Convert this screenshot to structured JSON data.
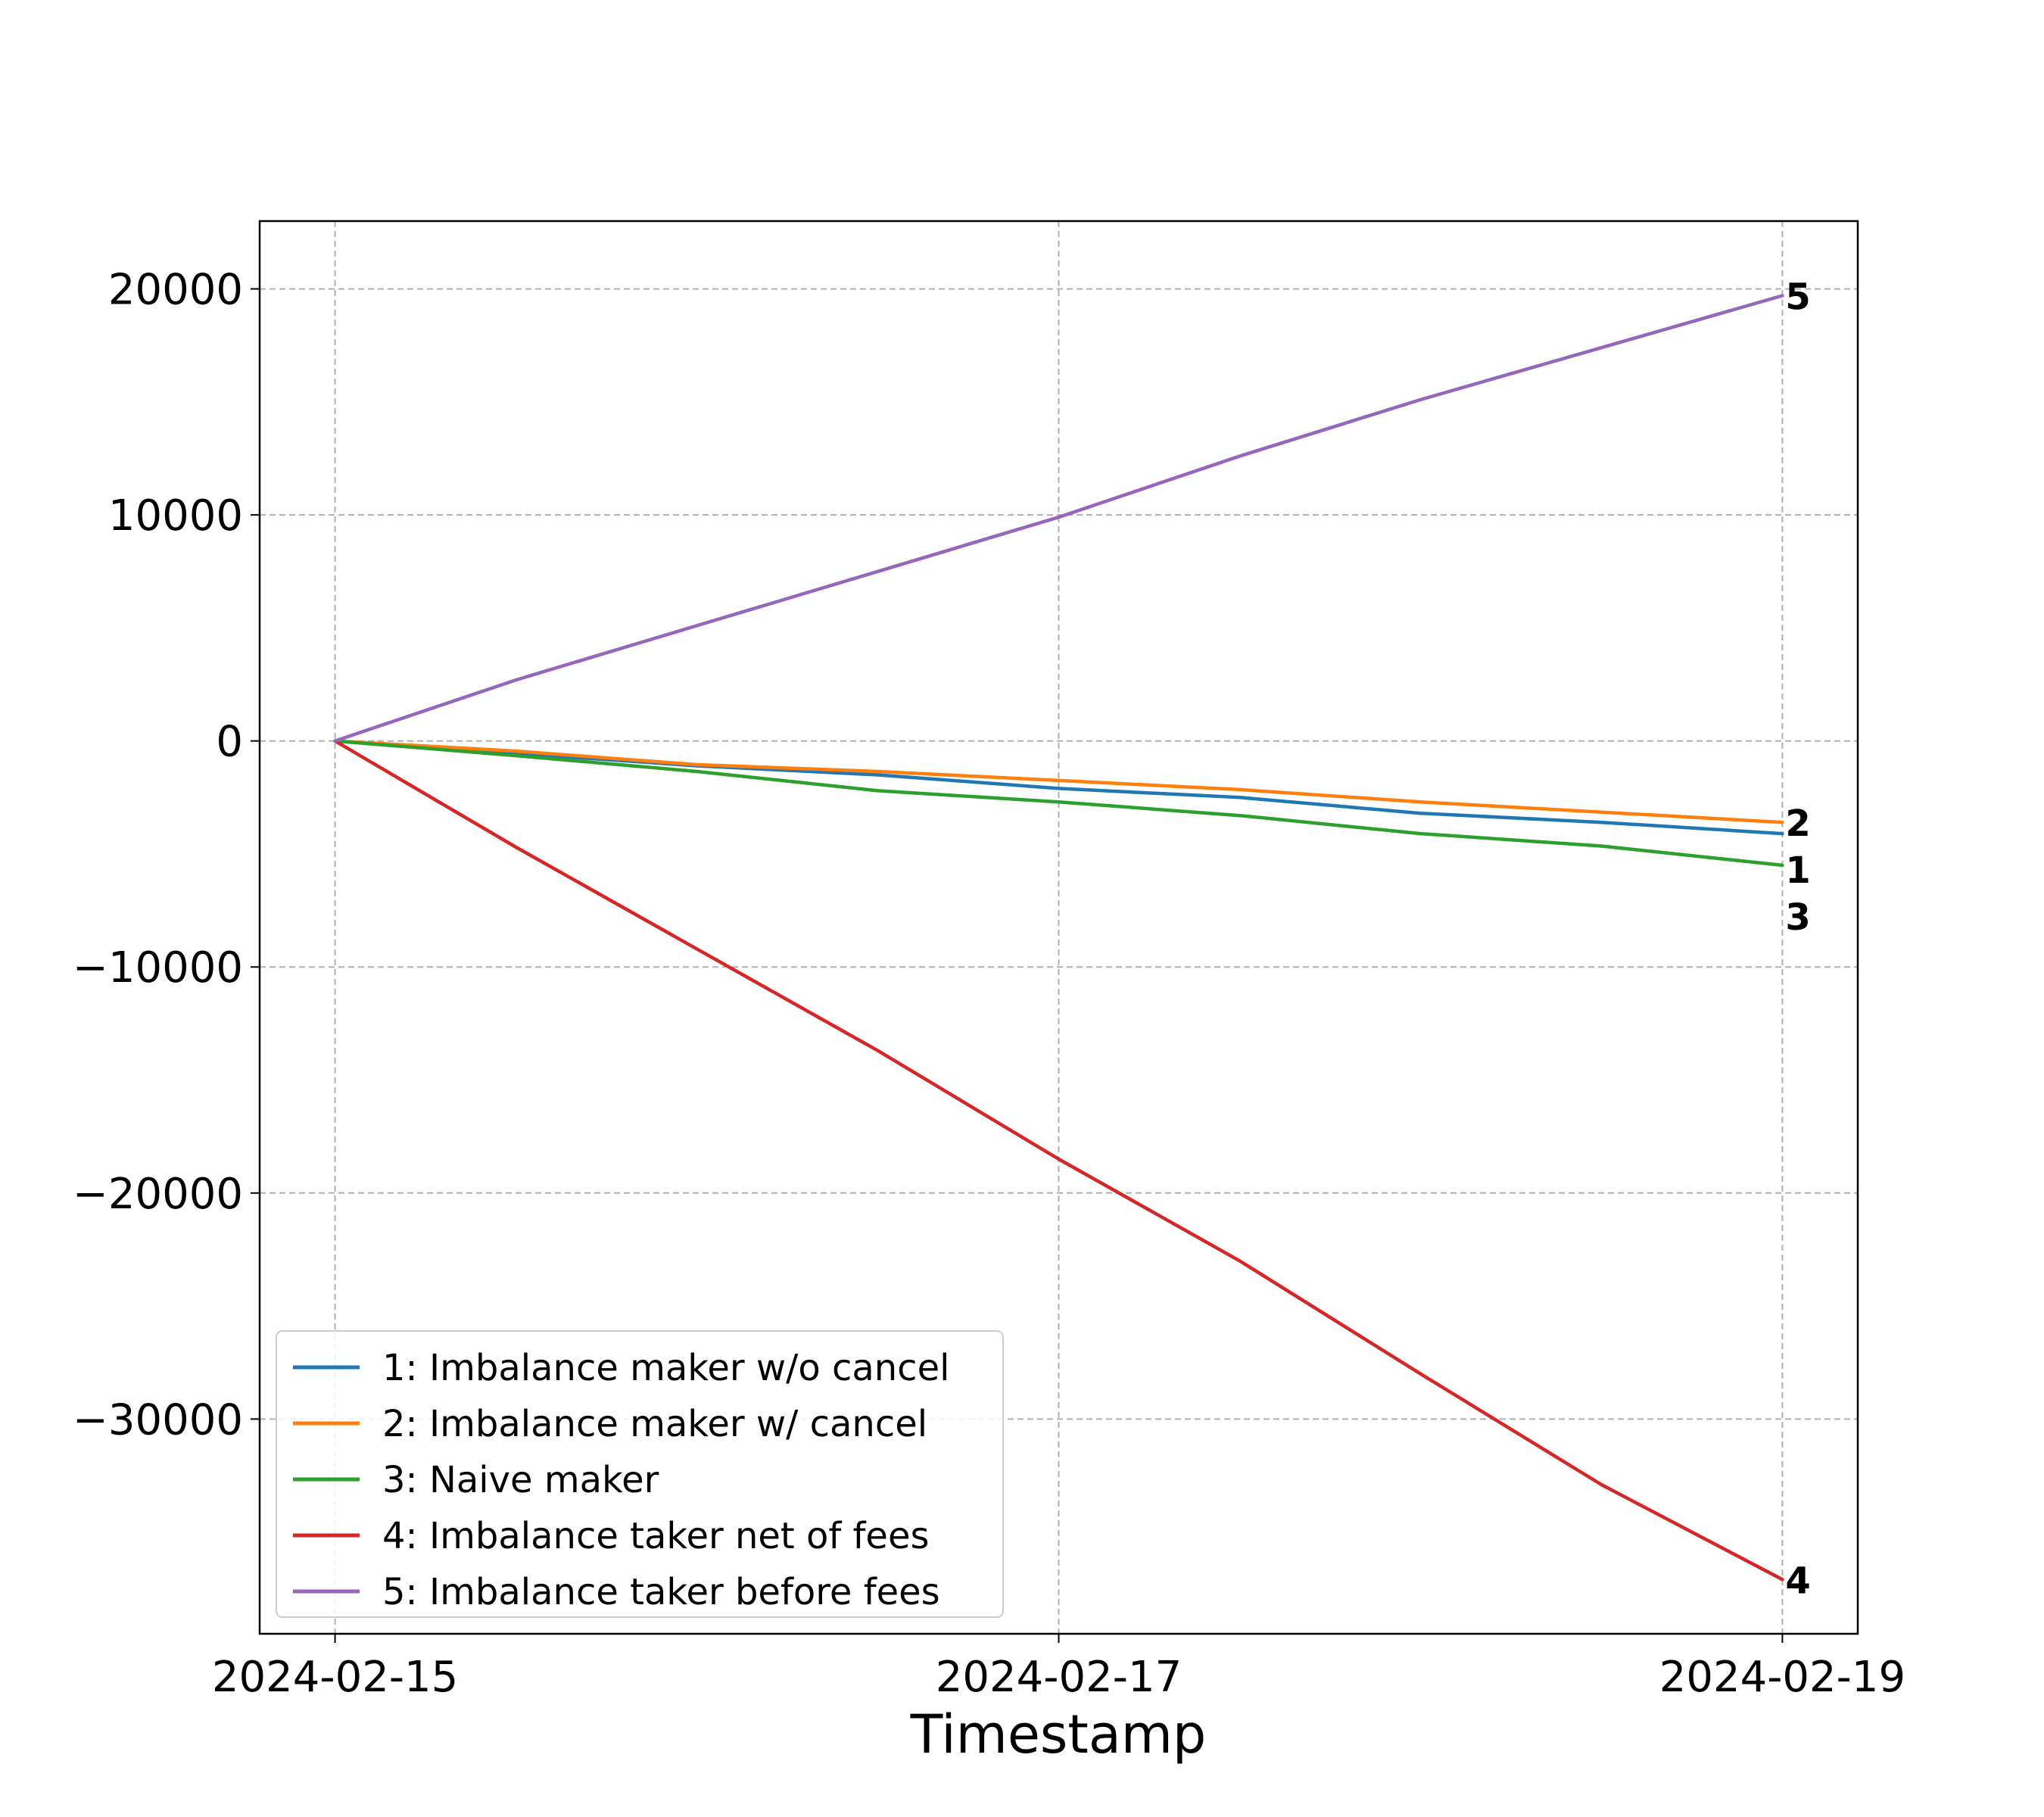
{
  "chart_data": {
    "type": "line",
    "title": "",
    "xlabel": "Timestamp",
    "ylabel": "",
    "x_ticks": [
      "2024-02-15",
      "2024-02-17",
      "2024-02-19"
    ],
    "y_ticks": [
      20000,
      10000,
      0,
      -10000,
      -20000,
      -30000
    ],
    "y_tick_labels": [
      "20000",
      "10000",
      "0",
      "−10000",
      "−20000",
      "−30000"
    ],
    "xlim": [
      "2024-02-14T19:00",
      "2024-02-19T05:00"
    ],
    "ylim": [
      -39500,
      23000
    ],
    "grid": true,
    "grid_style": "dashed",
    "legend_position": "lower-left",
    "series": [
      {
        "name": "1: Imbalance maker w/o cancel",
        "end_label": "1",
        "color": "#1f77b4",
        "points": [
          [
            "2024-02-15T00:00",
            0
          ],
          [
            "2024-02-15T12:00",
            -550
          ],
          [
            "2024-02-16T00:00",
            -1100
          ],
          [
            "2024-02-16T12:00",
            -1500
          ],
          [
            "2024-02-17T00:00",
            -2100
          ],
          [
            "2024-02-17T12:00",
            -2500
          ],
          [
            "2024-02-18T00:00",
            -3200
          ],
          [
            "2024-02-18T12:00",
            -3600
          ],
          [
            "2024-02-19T00:00",
            -4100
          ]
        ]
      },
      {
        "name": "2: Imbalance maker w/ cancel",
        "end_label": "2",
        "color": "#ff7f0e",
        "points": [
          [
            "2024-02-15T00:00",
            0
          ],
          [
            "2024-02-15T12:00",
            -450
          ],
          [
            "2024-02-16T00:00",
            -1050
          ],
          [
            "2024-02-16T12:00",
            -1350
          ],
          [
            "2024-02-17T00:00",
            -1750
          ],
          [
            "2024-02-17T12:00",
            -2150
          ],
          [
            "2024-02-18T00:00",
            -2700
          ],
          [
            "2024-02-18T12:00",
            -3150
          ],
          [
            "2024-02-19T00:00",
            -3600
          ]
        ]
      },
      {
        "name": "3: Naive maker",
        "end_label": "3",
        "color": "#2ca02c",
        "points": [
          [
            "2024-02-15T00:00",
            0
          ],
          [
            "2024-02-15T12:00",
            -650
          ],
          [
            "2024-02-16T00:00",
            -1350
          ],
          [
            "2024-02-16T12:00",
            -2200
          ],
          [
            "2024-02-17T00:00",
            -2700
          ],
          [
            "2024-02-17T12:00",
            -3300
          ],
          [
            "2024-02-18T00:00",
            -4100
          ],
          [
            "2024-02-18T12:00",
            -4650
          ],
          [
            "2024-02-19T00:00",
            -5500
          ]
        ]
      },
      {
        "name": "4: Imbalance taker net of fees",
        "end_label": "4",
        "color": "#d62728",
        "points": [
          [
            "2024-02-15T00:00",
            0
          ],
          [
            "2024-02-15T12:00",
            -4700
          ],
          [
            "2024-02-16T00:00",
            -9200
          ],
          [
            "2024-02-16T12:00",
            -13700
          ],
          [
            "2024-02-17T00:00",
            -18500
          ],
          [
            "2024-02-17T12:00",
            -23000
          ],
          [
            "2024-02-18T00:00",
            -28000
          ],
          [
            "2024-02-18T12:00",
            -32900
          ],
          [
            "2024-02-19T00:00",
            -37100
          ]
        ]
      },
      {
        "name": "5: Imbalance taker before fees",
        "end_label": "5",
        "color": "#9467bd",
        "points": [
          [
            "2024-02-15T00:00",
            0
          ],
          [
            "2024-02-15T12:00",
            2700
          ],
          [
            "2024-02-16T00:00",
            5100
          ],
          [
            "2024-02-16T12:00",
            7500
          ],
          [
            "2024-02-17T00:00",
            9900
          ],
          [
            "2024-02-17T12:00",
            12600
          ],
          [
            "2024-02-18T00:00",
            15100
          ],
          [
            "2024-02-18T12:00",
            17400
          ],
          [
            "2024-02-19T00:00",
            19700
          ]
        ]
      }
    ]
  }
}
